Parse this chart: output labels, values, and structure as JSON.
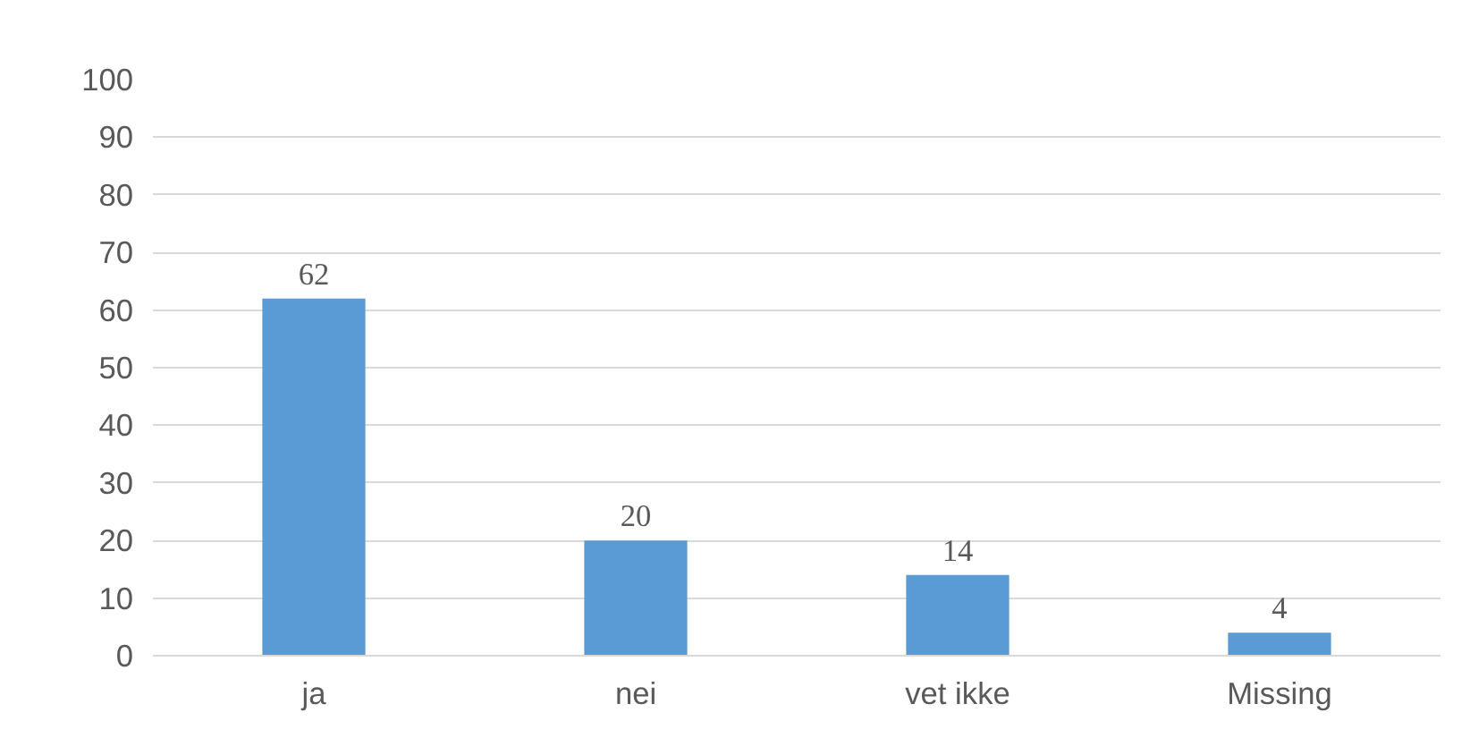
{
  "chart_data": {
    "type": "bar",
    "categories": [
      "ja",
      "nei",
      "vet ikke",
      "Missing"
    ],
    "values": [
      62,
      20,
      14,
      4
    ],
    "color": "#5b9bd5",
    "ylim": [
      0,
      100
    ],
    "yticks": [
      0,
      10,
      20,
      30,
      40,
      50,
      60,
      70,
      80,
      90,
      100
    ],
    "grid": "y",
    "data_labels": true
  }
}
